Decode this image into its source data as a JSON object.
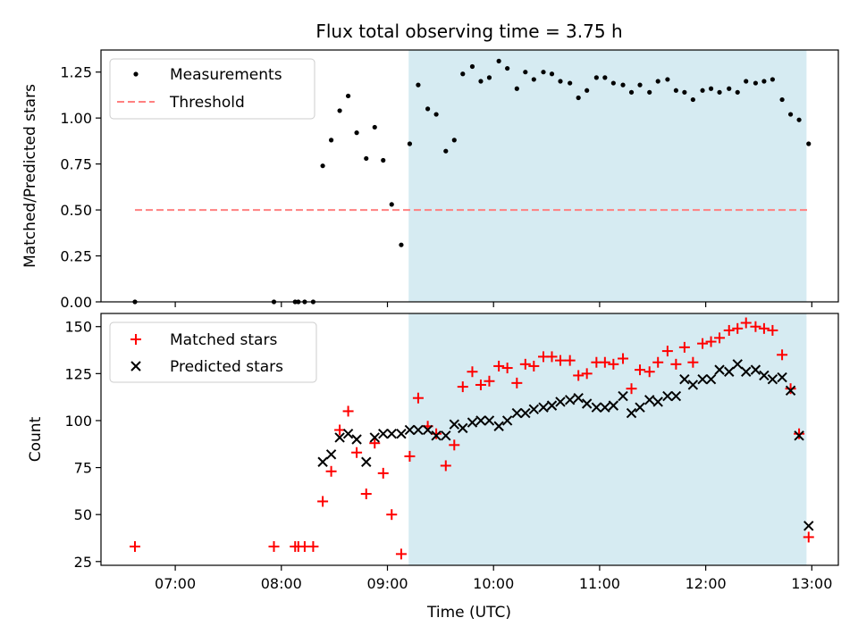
{
  "chart_data": {
    "title": "Flux total observing time = 3.75 h",
    "xlabel": "Time (UTC)",
    "x_ticks": [
      "07:00",
      "08:00",
      "09:00",
      "10:00",
      "11:00",
      "12:00",
      "13:00"
    ],
    "x_tick_hours": [
      7,
      8,
      9,
      10,
      11,
      12,
      13
    ],
    "xlim_hours": [
      6.3,
      13.25
    ],
    "shaded_span_hours": [
      9.2,
      12.95
    ],
    "shade_color": "#add8e6",
    "panels": [
      {
        "type": "scatter",
        "ylabel": "Matched/Predicted stars",
        "ylim": [
          0,
          1.37
        ],
        "y_ticks": [
          "0.00",
          "0.25",
          "0.50",
          "0.75",
          "1.00",
          "1.25"
        ],
        "y_tick_values": [
          0,
          0.25,
          0.5,
          0.75,
          1.0,
          1.25
        ],
        "threshold": {
          "name": "Threshold",
          "value": 0.5,
          "x_range": [
            6.62,
            12.97
          ],
          "color": "#ff8080"
        },
        "legend": {
          "placement": "upper left",
          "entries": [
            "Measurements",
            "Threshold"
          ]
        },
        "series": [
          {
            "name": "Measurements",
            "color": "#000000",
            "marker": "dot",
            "x": [
              6.62,
              7.93,
              8.13,
              8.16,
              8.22,
              8.3,
              8.39,
              8.47,
              8.55,
              8.63,
              8.71,
              8.8,
              8.88,
              8.96,
              9.04,
              9.13,
              9.21,
              9.29,
              9.38,
              9.46,
              9.55,
              9.63,
              9.71,
              9.8,
              9.88,
              9.96,
              10.05,
              10.13,
              10.22,
              10.3,
              10.38,
              10.47,
              10.55,
              10.63,
              10.72,
              10.8,
              10.88,
              10.97,
              11.05,
              11.13,
              11.22,
              11.3,
              11.38,
              11.47,
              11.55,
              11.64,
              11.72,
              11.8,
              11.88,
              11.97,
              12.05,
              12.13,
              12.22,
              12.3,
              12.38,
              12.47,
              12.55,
              12.63,
              12.72,
              12.8,
              12.88,
              12.97
            ],
            "y": [
              0.0,
              0.0,
              0.0,
              0.0,
              0.0,
              0.0,
              0.74,
              0.88,
              1.04,
              1.12,
              0.92,
              0.78,
              0.95,
              0.77,
              0.53,
              0.31,
              0.86,
              1.18,
              1.05,
              1.02,
              0.82,
              0.88,
              1.24,
              1.28,
              1.2,
              1.22,
              1.31,
              1.27,
              1.16,
              1.25,
              1.21,
              1.25,
              1.24,
              1.2,
              1.19,
              1.11,
              1.15,
              1.22,
              1.22,
              1.19,
              1.18,
              1.14,
              1.18,
              1.14,
              1.2,
              1.21,
              1.15,
              1.14,
              1.1,
              1.15,
              1.16,
              1.14,
              1.16,
              1.14,
              1.2,
              1.19,
              1.2,
              1.21,
              1.1,
              1.02,
              0.99,
              0.86
            ]
          }
        ]
      },
      {
        "type": "scatter",
        "ylabel": "Count",
        "ylim": [
          23,
          157
        ],
        "y_ticks": [
          "25",
          "50",
          "75",
          "100",
          "125",
          "150"
        ],
        "y_tick_values": [
          25,
          50,
          75,
          100,
          125,
          150
        ],
        "legend": {
          "placement": "upper left",
          "entries": [
            "Matched stars",
            "Predicted stars"
          ]
        },
        "series": [
          {
            "name": "Matched stars",
            "color": "#ff0000",
            "marker": "plus",
            "x": [
              6.62,
              7.93,
              8.13,
              8.16,
              8.22,
              8.3,
              8.39,
              8.47,
              8.55,
              8.63,
              8.71,
              8.8,
              8.88,
              8.96,
              9.04,
              9.13,
              9.21,
              9.29,
              9.38,
              9.46,
              9.55,
              9.63,
              9.71,
              9.8,
              9.88,
              9.96,
              10.05,
              10.13,
              10.22,
              10.3,
              10.38,
              10.47,
              10.55,
              10.63,
              10.72,
              10.8,
              10.88,
              10.97,
              11.05,
              11.13,
              11.22,
              11.3,
              11.38,
              11.47,
              11.55,
              11.64,
              11.72,
              11.8,
              11.88,
              11.97,
              12.05,
              12.13,
              12.22,
              12.3,
              12.38,
              12.47,
              12.55,
              12.63,
              12.72,
              12.8,
              12.88,
              12.97
            ],
            "y": [
              33,
              33,
              33,
              33,
              33,
              33,
              57,
              73,
              95,
              105,
              83,
              61,
              88,
              72,
              50,
              29,
              81,
              112,
              97,
              93,
              76,
              87,
              118,
              126,
              119,
              121,
              129,
              128,
              120,
              130,
              129,
              134,
              134,
              132,
              132,
              124,
              125,
              131,
              131,
              130,
              133,
              117,
              127,
              126,
              131,
              137,
              130,
              139,
              131,
              141,
              142,
              144,
              148,
              149,
              152,
              150,
              149,
              148,
              135,
              117,
              93,
              38
            ]
          },
          {
            "name": "Predicted stars",
            "color": "#000000",
            "marker": "cross",
            "x": [
              8.39,
              8.47,
              8.55,
              8.63,
              8.71,
              8.8,
              8.88,
              8.96,
              9.04,
              9.13,
              9.21,
              9.29,
              9.38,
              9.46,
              9.55,
              9.63,
              9.71,
              9.8,
              9.88,
              9.96,
              10.05,
              10.13,
              10.22,
              10.3,
              10.38,
              10.47,
              10.55,
              10.63,
              10.72,
              10.8,
              10.88,
              10.97,
              11.05,
              11.13,
              11.22,
              11.3,
              11.38,
              11.47,
              11.55,
              11.64,
              11.72,
              11.8,
              11.88,
              11.97,
              12.05,
              12.13,
              12.22,
              12.3,
              12.38,
              12.47,
              12.55,
              12.63,
              12.72,
              12.8,
              12.88,
              12.97
            ],
            "y": [
              78,
              82,
              91,
              93,
              90,
              78,
              91,
              93,
              93,
              93,
              95,
              95,
              95,
              92,
              92,
              98,
              96,
              99,
              100,
              100,
              97,
              100,
              104,
              104,
              106,
              107,
              108,
              110,
              111,
              112,
              109,
              107,
              107,
              108,
              113,
              104,
              107,
              111,
              110,
              113,
              113,
              122,
              119,
              122,
              122,
              127,
              126,
              130,
              126,
              127,
              124,
              122,
              123,
              116,
              92,
              44
            ]
          }
        ]
      }
    ]
  }
}
